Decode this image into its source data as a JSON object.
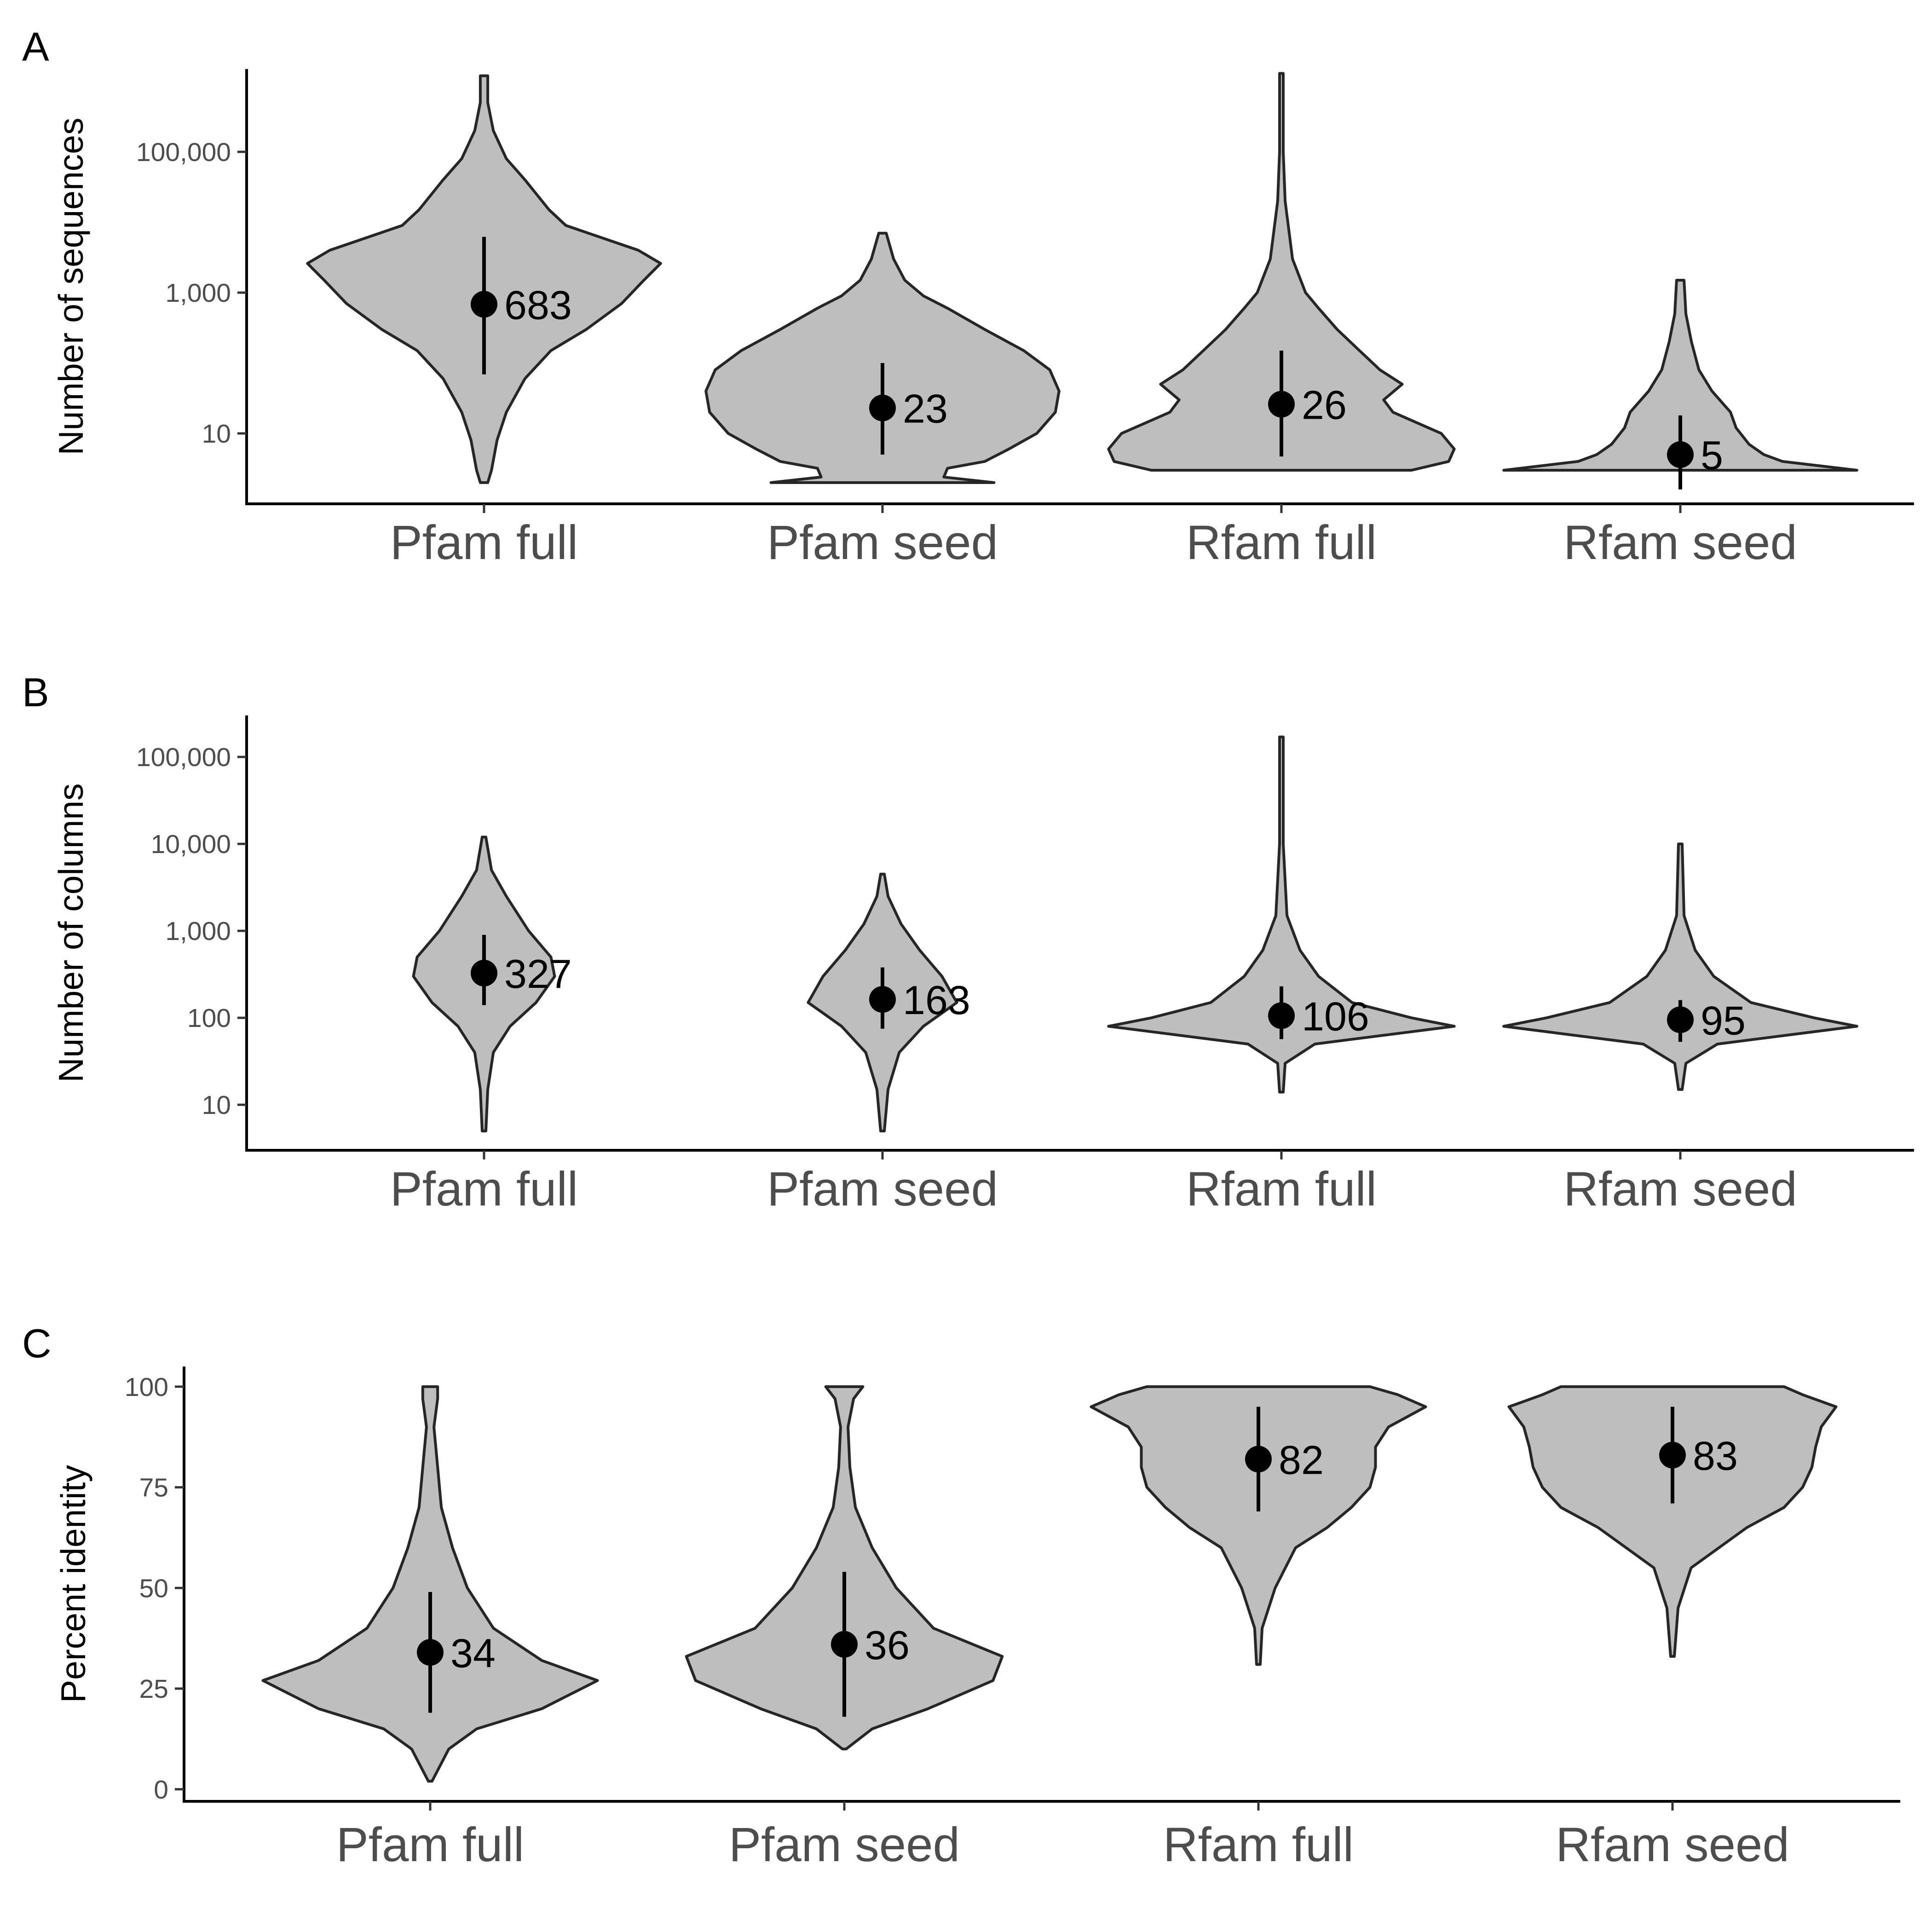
{
  "chart_data": [
    {
      "panel": "A",
      "type": "violin",
      "ylabel": "Number of sequences",
      "yscale": "log10",
      "ylim": [
        1,
        1500000
      ],
      "yticks": [
        10,
        1000,
        100000
      ],
      "ytick_labels": [
        "10",
        "1,000",
        "100,000"
      ],
      "categories": [
        "Pfam full",
        "Pfam seed",
        "Rfam full",
        "Rfam seed"
      ],
      "groups": [
        {
          "category": "Pfam full",
          "median": 683,
          "median_label": "683",
          "interval": [
            69,
            6200
          ],
          "half_width": 0.45,
          "profile": [
            [
              2,
              0.02
            ],
            [
              3,
              0.04
            ],
            [
              8,
              0.07
            ],
            [
              20,
              0.12
            ],
            [
              60,
              0.22
            ],
            [
              150,
              0.36
            ],
            [
              300,
              0.55
            ],
            [
              700,
              0.74
            ],
            [
              1500,
              0.86
            ],
            [
              2600,
              0.95
            ],
            [
              4000,
              0.83
            ],
            [
              9000,
              0.44
            ],
            [
              15000,
              0.35
            ],
            [
              40000,
              0.22
            ],
            [
              80000,
              0.12
            ],
            [
              200000,
              0.05
            ],
            [
              500000,
              0.02
            ],
            [
              1200000,
              0.02
            ]
          ]
        },
        {
          "category": "Pfam seed",
          "median": 23,
          "median_label": "23",
          "interval": [
            5,
            100
          ],
          "half_width": 0.45,
          "profile": [
            [
              2,
              0.6
            ],
            [
              2.4,
              0.33
            ],
            [
              3.2,
              0.35
            ],
            [
              4,
              0.55
            ],
            [
              6,
              0.68
            ],
            [
              10,
              0.83
            ],
            [
              20,
              0.93
            ],
            [
              40,
              0.95
            ],
            [
              80,
              0.9
            ],
            [
              150,
              0.76
            ],
            [
              300,
              0.55
            ],
            [
              600,
              0.35
            ],
            [
              900,
              0.22
            ],
            [
              1500,
              0.12
            ],
            [
              3000,
              0.06
            ],
            [
              7000,
              0.02
            ]
          ]
        },
        {
          "category": "Rfam full",
          "median": 26,
          "median_label": "26",
          "interval": [
            4.7,
            150
          ],
          "half_width": 0.45,
          "profile": [
            [
              3,
              0.7
            ],
            [
              4,
              0.9
            ],
            [
              6,
              0.93
            ],
            [
              10,
              0.86
            ],
            [
              20,
              0.6
            ],
            [
              30,
              0.55
            ],
            [
              50,
              0.65
            ],
            [
              80,
              0.53
            ],
            [
              150,
              0.42
            ],
            [
              300,
              0.3
            ],
            [
              600,
              0.2
            ],
            [
              1000,
              0.13
            ],
            [
              3000,
              0.06
            ],
            [
              20000,
              0.02
            ],
            [
              100000,
              0.01
            ],
            [
              1300000,
              0.01
            ]
          ]
        },
        {
          "category": "Rfam seed",
          "median": 5,
          "median_label": "5",
          "interval": [
            1.6,
            18
          ],
          "half_width": 0.45,
          "profile": [
            [
              3,
              0.95
            ],
            [
              4,
              0.55
            ],
            [
              5,
              0.45
            ],
            [
              7,
              0.37
            ],
            [
              12,
              0.3
            ],
            [
              20,
              0.27
            ],
            [
              40,
              0.17
            ],
            [
              80,
              0.1
            ],
            [
              200,
              0.06
            ],
            [
              500,
              0.03
            ],
            [
              1500,
              0.02
            ]
          ]
        }
      ]
    },
    {
      "panel": "B",
      "type": "violin",
      "ylabel": "Number of columns",
      "yscale": "log10",
      "ylim": [
        3,
        300000
      ],
      "yticks": [
        10,
        100,
        1000,
        10000,
        100000
      ],
      "ytick_labels": [
        "10",
        "100",
        "1,000",
        "10,000",
        "100,000"
      ],
      "categories": [
        "Pfam full",
        "Pfam seed",
        "Rfam full",
        "Rfam seed"
      ],
      "groups": [
        {
          "category": "Pfam full",
          "median": 327,
          "median_label": "327",
          "interval": [
            140,
            900
          ],
          "half_width": 0.45,
          "profile": [
            [
              5,
              0.01
            ],
            [
              15,
              0.02
            ],
            [
              40,
              0.05
            ],
            [
              80,
              0.14
            ],
            [
              150,
              0.28
            ],
            [
              300,
              0.38
            ],
            [
              500,
              0.36
            ],
            [
              1000,
              0.24
            ],
            [
              2500,
              0.12
            ],
            [
              5000,
              0.04
            ],
            [
              12000,
              0.01
            ]
          ]
        },
        {
          "category": "Pfam seed",
          "median": 163,
          "median_label": "163",
          "interval": [
            75,
            380
          ],
          "half_width": 0.45,
          "profile": [
            [
              5,
              0.01
            ],
            [
              15,
              0.03
            ],
            [
              40,
              0.09
            ],
            [
              80,
              0.22
            ],
            [
              150,
              0.4
            ],
            [
              300,
              0.32
            ],
            [
              600,
              0.2
            ],
            [
              1200,
              0.1
            ],
            [
              2500,
              0.03
            ],
            [
              4500,
              0.01
            ]
          ]
        },
        {
          "category": "Rfam full",
          "median": 106,
          "median_label": "106",
          "interval": [
            57,
            230
          ],
          "half_width": 0.45,
          "profile": [
            [
              14,
              0.01
            ],
            [
              30,
              0.02
            ],
            [
              50,
              0.18
            ],
            [
              80,
              0.93
            ],
            [
              100,
              0.7
            ],
            [
              150,
              0.38
            ],
            [
              300,
              0.2
            ],
            [
              600,
              0.1
            ],
            [
              1500,
              0.03
            ],
            [
              10000,
              0.01
            ],
            [
              170000,
              0.01
            ]
          ]
        },
        {
          "category": "Rfam seed",
          "median": 95,
          "median_label": "95",
          "interval": [
            53,
            160
          ],
          "half_width": 0.45,
          "profile": [
            [
              15,
              0.01
            ],
            [
              30,
              0.03
            ],
            [
              50,
              0.2
            ],
            [
              80,
              0.95
            ],
            [
              100,
              0.72
            ],
            [
              150,
              0.38
            ],
            [
              300,
              0.18
            ],
            [
              600,
              0.08
            ],
            [
              1500,
              0.02
            ],
            [
              10000,
              0.01
            ]
          ]
        }
      ]
    },
    {
      "panel": "C",
      "type": "violin",
      "ylabel": "Percent identity",
      "yscale": "linear",
      "ylim": [
        -3,
        105
      ],
      "yticks": [
        0,
        25,
        50,
        75,
        100
      ],
      "ytick_labels": [
        "0",
        "25",
        "50",
        "75",
        "100"
      ],
      "categories": [
        "Pfam full",
        "Pfam seed",
        "Rfam full",
        "Rfam seed"
      ],
      "groups": [
        {
          "category": "Pfam full",
          "median": 34,
          "median_label": "34",
          "interval": [
            19,
            49
          ],
          "half_width": 0.45,
          "profile": [
            [
              2,
              0.01
            ],
            [
              10,
              0.1
            ],
            [
              15,
              0.25
            ],
            [
              20,
              0.6
            ],
            [
              27,
              0.9
            ],
            [
              32,
              0.6
            ],
            [
              40,
              0.34
            ],
            [
              50,
              0.2
            ],
            [
              60,
              0.12
            ],
            [
              70,
              0.06
            ],
            [
              80,
              0.04
            ],
            [
              90,
              0.02
            ],
            [
              97,
              0.04
            ],
            [
              100,
              0.04
            ]
          ]
        },
        {
          "category": "Pfam seed",
          "median": 36,
          "median_label": "36",
          "interval": [
            18,
            54
          ],
          "half_width": 0.45,
          "profile": [
            [
              10,
              0.01
            ],
            [
              15,
              0.15
            ],
            [
              20,
              0.45
            ],
            [
              27,
              0.8
            ],
            [
              33,
              0.85
            ],
            [
              40,
              0.48
            ],
            [
              50,
              0.28
            ],
            [
              60,
              0.15
            ],
            [
              70,
              0.06
            ],
            [
              80,
              0.03
            ],
            [
              90,
              0.02
            ],
            [
              97,
              0.05
            ],
            [
              100,
              0.1
            ]
          ]
        },
        {
          "category": "Rfam full",
          "median": 82,
          "median_label": "82",
          "interval": [
            69,
            95
          ],
          "half_width": 0.45,
          "profile": [
            [
              31,
              0.01
            ],
            [
              40,
              0.02
            ],
            [
              50,
              0.09
            ],
            [
              60,
              0.2
            ],
            [
              65,
              0.37
            ],
            [
              70,
              0.5
            ],
            [
              75,
              0.6
            ],
            [
              80,
              0.63
            ],
            [
              85,
              0.63
            ],
            [
              90,
              0.7
            ],
            [
              95,
              0.9
            ],
            [
              98,
              0.75
            ],
            [
              100,
              0.6
            ]
          ]
        },
        {
          "category": "Rfam seed",
          "median": 83,
          "median_label": "83",
          "interval": [
            71,
            95
          ],
          "half_width": 0.45,
          "profile": [
            [
              33,
              0.01
            ],
            [
              45,
              0.03
            ],
            [
              55,
              0.1
            ],
            [
              65,
              0.4
            ],
            [
              70,
              0.6
            ],
            [
              75,
              0.7
            ],
            [
              80,
              0.75
            ],
            [
              85,
              0.77
            ],
            [
              90,
              0.8
            ],
            [
              95,
              0.88
            ],
            [
              98,
              0.7
            ],
            [
              100,
              0.6
            ]
          ]
        }
      ]
    }
  ]
}
